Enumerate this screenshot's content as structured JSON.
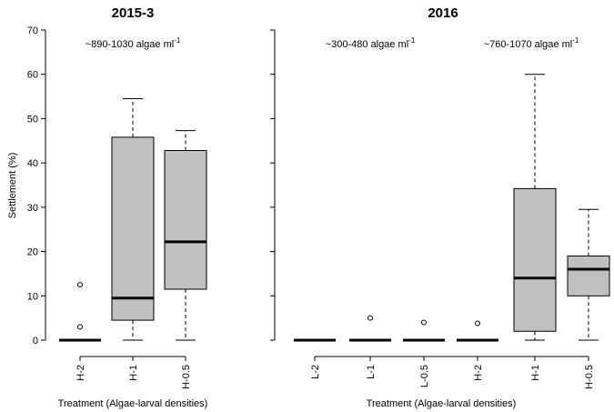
{
  "chart_data": [
    {
      "type": "boxplot",
      "title": "2015-3",
      "xlabel": "Treatment (Algae-larval densities)",
      "ylabel": "Settlement (%)",
      "ylim": [
        0,
        70
      ],
      "yticks": [
        0,
        10,
        20,
        30,
        40,
        50,
        60,
        70
      ],
      "annotation": "~890-1030 algae ml",
      "annotation_sup": "-1",
      "categories": [
        "H-2",
        "H-1",
        "H-0.5"
      ],
      "boxes": [
        {
          "label": "H-2",
          "min": 0,
          "q1": 0,
          "median": 0,
          "q3": 0,
          "max": 0,
          "outliers": [
            3,
            12.5
          ]
        },
        {
          "label": "H-1",
          "min": 0,
          "q1": 4.5,
          "median": 9.5,
          "q3": 45.8,
          "max": 54.5,
          "outliers": []
        },
        {
          "label": "H-0.5",
          "min": 0,
          "q1": 11.5,
          "median": 22.2,
          "q3": 42.8,
          "max": 47.3,
          "outliers": []
        }
      ],
      "box_color": "#c0c0c0"
    },
    {
      "type": "boxplot",
      "title": "2016",
      "xlabel": "Treatment (Algae-larval densities)",
      "ylabel": "",
      "ylim": [
        0,
        70
      ],
      "annotations": [
        {
          "text": "~300-480 algae ml",
          "sup": "-1"
        },
        {
          "text": "~760-1070 algae ml",
          "sup": "-1"
        }
      ],
      "categories": [
        "L-2",
        "L-1",
        "L-0.5",
        "H-2",
        "H-1",
        "H-0.5"
      ],
      "boxes": [
        {
          "label": "L-2",
          "min": 0,
          "q1": 0,
          "median": 0,
          "q3": 0,
          "max": 0,
          "outliers": []
        },
        {
          "label": "L-1",
          "min": 0,
          "q1": 0,
          "median": 0,
          "q3": 0,
          "max": 0,
          "outliers": [
            5
          ]
        },
        {
          "label": "L-0.5",
          "min": 0,
          "q1": 0,
          "median": 0,
          "q3": 0,
          "max": 0,
          "outliers": [
            4
          ]
        },
        {
          "label": "H-2",
          "min": 0,
          "q1": 0,
          "median": 0,
          "q3": 0,
          "max": 0,
          "outliers": [
            3.8
          ]
        },
        {
          "label": "H-1",
          "min": 0,
          "q1": 2,
          "median": 14,
          "q3": 34.2,
          "max": 60,
          "outliers": []
        },
        {
          "label": "H-0.5",
          "min": 0,
          "q1": 10,
          "median": 16,
          "q3": 19,
          "max": 29.5,
          "outliers": []
        }
      ],
      "box_color": "#c0c0c0"
    }
  ]
}
